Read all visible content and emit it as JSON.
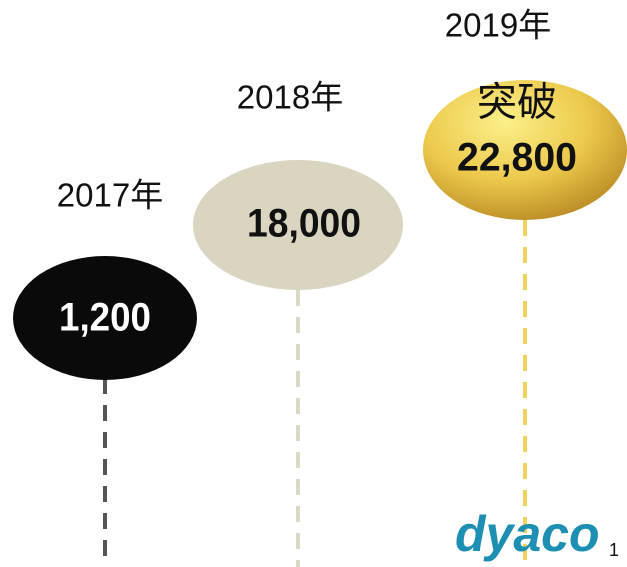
{
  "milestones": [
    {
      "year": "2017年",
      "value": "1,200"
    },
    {
      "year": "2018年",
      "value": "18,000"
    },
    {
      "year": "2019年",
      "prefix": "突破",
      "value": "22,800"
    }
  ],
  "logo": "dyaco",
  "page_number": "1"
}
